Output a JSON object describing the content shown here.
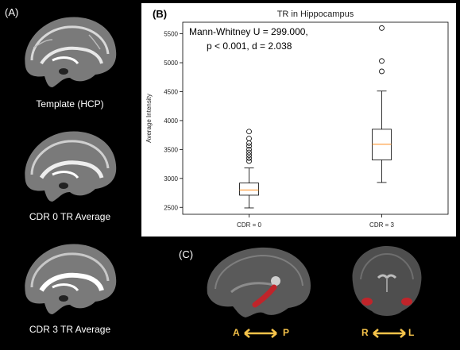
{
  "panels": {
    "a_label": "(A)",
    "b_label": "(B)",
    "c_label": "(C)"
  },
  "captions": {
    "template": "Template (HCP)",
    "cdr0": "CDR 0 TR Average",
    "cdr3": "CDR 3 TR Average"
  },
  "directions": {
    "sagittal_left": "A",
    "sagittal_right": "P",
    "coronal_left": "R",
    "coronal_right": "L"
  },
  "colors": {
    "median": "#ff8c1a",
    "highlight": "#c0242a",
    "arrow": "#f6c34a"
  },
  "chart_data": {
    "type": "box",
    "title": "TR in Hippocampus",
    "ylabel": "Average Intensity",
    "xlabel": "",
    "annotation": [
      "Mann-Whitney U = 299.000,",
      "p < 0.001, d = 2.038"
    ],
    "ylim": [
      2380,
      5700
    ],
    "yticks": [
      2500,
      3000,
      3500,
      4000,
      4500,
      5000,
      5500
    ],
    "categories": [
      "CDR = 0",
      "CDR = 3"
    ],
    "boxes": [
      {
        "whisker_low": 2490,
        "q1": 2710,
        "median": 2800,
        "q3": 2920,
        "whisker_high": 3180,
        "outliers": [
          3300,
          3350,
          3400,
          3450,
          3500,
          3560,
          3610,
          3690,
          3810
        ]
      },
      {
        "whisker_low": 2930,
        "q1": 3320,
        "median": 3590,
        "q3": 3850,
        "whisker_high": 4510,
        "outliers": [
          4850,
          5030,
          5600
        ]
      }
    ]
  }
}
